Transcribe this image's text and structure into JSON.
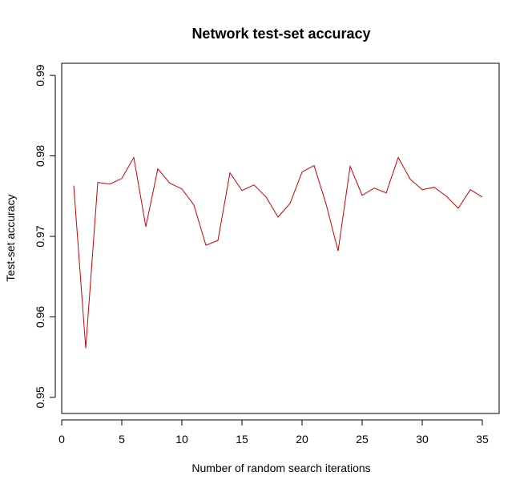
{
  "chart_data": {
    "type": "line",
    "title": "Network test-set accuracy",
    "xlabel": "Number of random search iterations",
    "ylabel": "Test-set accuracy",
    "xlim": [
      0,
      36.4
    ],
    "ylim": [
      0.948,
      0.9915
    ],
    "x_ticks": [
      0,
      5,
      10,
      15,
      20,
      25,
      30,
      35
    ],
    "x_tick_labels": [
      "0",
      "5",
      "10",
      "15",
      "20",
      "25",
      "30",
      "35"
    ],
    "y_ticks": [
      0.95,
      0.96,
      0.97,
      0.98,
      0.99
    ],
    "y_tick_labels": [
      "0.95",
      "0.96",
      "0.97",
      "0.98",
      "0.99"
    ],
    "grid": false,
    "legend": "none",
    "series": [
      {
        "color": "#cc0000",
        "x": [
          1,
          2,
          3,
          4,
          5,
          6,
          7,
          8,
          9,
          10,
          11,
          12,
          13,
          14,
          15,
          16,
          17,
          18,
          19,
          20,
          21,
          22,
          23,
          24,
          25,
          26,
          27,
          28,
          29,
          30,
          31,
          32,
          33,
          34,
          35
        ],
        "y": [
          0.9763,
          0.9561,
          0.9767,
          0.9765,
          0.9772,
          0.9798,
          0.9712,
          0.9784,
          0.9766,
          0.9759,
          0.9739,
          0.9689,
          0.9695,
          0.9779,
          0.9757,
          0.9764,
          0.9749,
          0.9724,
          0.9741,
          0.978,
          0.9788,
          0.974,
          0.9682,
          0.9787,
          0.9751,
          0.976,
          0.9754,
          0.9798,
          0.9771,
          0.9758,
          0.9761,
          0.975,
          0.9735,
          0.9758,
          0.9749
        ]
      }
    ]
  }
}
